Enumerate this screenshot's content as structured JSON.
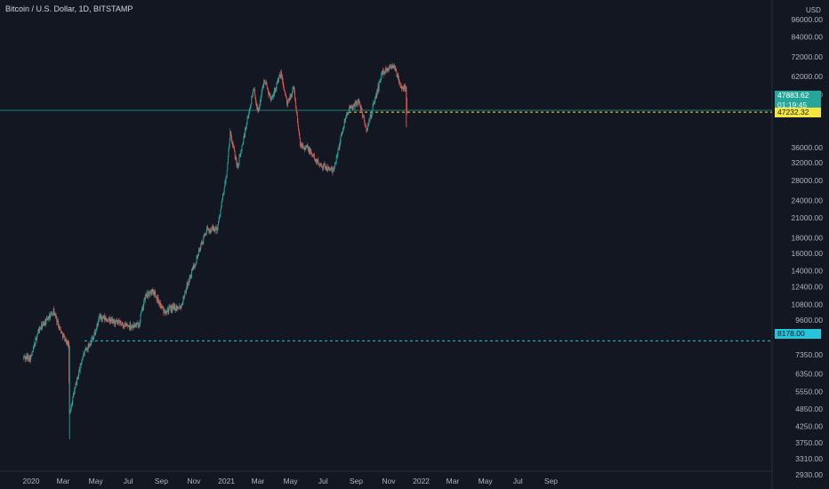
{
  "header": {
    "title": "Bitcoin / U.S. Dollar, 1D, BITSTAMP",
    "currency": "USD"
  },
  "price_axis": {
    "labels": [
      "96000.00",
      "84000.00",
      "72000.00",
      "62000.00",
      "54000.00",
      "36000.00",
      "32000.00",
      "28000.00",
      "24000.00",
      "21000.00",
      "18000.00",
      "16000.00",
      "14000.00",
      "12400.00",
      "10800.00",
      "9600.00",
      "7350.00",
      "6350.00",
      "5550.00",
      "4850.00",
      "4250.00",
      "3750.00",
      "3310.00",
      "2930.00"
    ]
  },
  "time_axis": {
    "labels": [
      "2020",
      "Mar",
      "May",
      "Jul",
      "Sep",
      "Nov",
      "2021",
      "Mar",
      "May",
      "Jul",
      "Sep",
      "Nov",
      "2022",
      "Mar",
      "May",
      "Jul",
      "Sep"
    ]
  },
  "price_tags": {
    "current": "47883.62",
    "countdown": "01:19:45",
    "low": "47232.32",
    "support": "8178.00"
  },
  "colors": {
    "background": "#131722",
    "up": "#26a69a",
    "down": "#ef5350",
    "current_line": "#26a69a",
    "low_line": "#f5e63b",
    "support_line": "#26c6da"
  },
  "chart_data": {
    "type": "candlestick",
    "title": "Bitcoin / U.S. Dollar, 1D, BITSTAMP",
    "y_scale": "log",
    "ylim": [
      2700,
      100000
    ],
    "x_range": [
      "2020-01-01",
      "2022-09-30"
    ],
    "horizontal_lines": [
      {
        "price": 47883.62,
        "label": "47883.62",
        "style": "solid"
      },
      {
        "price": 47232.32,
        "label": "47232.32",
        "style": "dashed"
      },
      {
        "price": 8178.0,
        "label": "8178.00",
        "style": "dashed"
      }
    ],
    "series": [
      {
        "name": "BTCUSD",
        "price_path": [
          [
            "2019-12-18",
            7200
          ],
          [
            "2020-01-01",
            7200
          ],
          [
            "2020-01-14",
            8800
          ],
          [
            "2020-02-12",
            10300
          ],
          [
            "2020-02-27",
            8700
          ],
          [
            "2020-03-11",
            7900
          ],
          [
            "2020-03-13",
            4600
          ],
          [
            "2020-03-16",
            5000
          ],
          [
            "2020-04-06",
            7200
          ],
          [
            "2020-04-30",
            8700
          ],
          [
            "2020-05-08",
            9800
          ],
          [
            "2020-06-01",
            9500
          ],
          [
            "2020-06-25",
            9200
          ],
          [
            "2020-07-20",
            9200
          ],
          [
            "2020-08-02",
            11500
          ],
          [
            "2020-08-17",
            12000
          ],
          [
            "2020-09-05",
            10300
          ],
          [
            "2020-10-08",
            10700
          ],
          [
            "2020-10-21",
            12800
          ],
          [
            "2020-11-24",
            19000
          ],
          [
            "2020-12-15",
            19400
          ],
          [
            "2021-01-01",
            29000
          ],
          [
            "2021-01-08",
            40000
          ],
          [
            "2021-01-22",
            31000
          ],
          [
            "2021-02-10",
            45000
          ],
          [
            "2021-02-21",
            57000
          ],
          [
            "2021-03-01",
            47000
          ],
          [
            "2021-03-13",
            61000
          ],
          [
            "2021-03-25",
            52000
          ],
          [
            "2021-04-13",
            63500
          ],
          [
            "2021-04-25",
            50000
          ],
          [
            "2021-05-07",
            57000
          ],
          [
            "2021-05-19",
            37000
          ],
          [
            "2021-06-01",
            36000
          ],
          [
            "2021-06-22",
            32000
          ],
          [
            "2021-07-20",
            30000
          ],
          [
            "2021-08-14",
            47000
          ],
          [
            "2021-09-06",
            51500
          ],
          [
            "2021-09-21",
            41000
          ],
          [
            "2021-10-01",
            48000
          ],
          [
            "2021-10-20",
            64000
          ],
          [
            "2021-11-10",
            68000
          ],
          [
            "2021-11-24",
            57000
          ],
          [
            "2021-12-03",
            57000
          ],
          [
            "2021-12-05",
            47883.62
          ]
        ]
      }
    ]
  }
}
